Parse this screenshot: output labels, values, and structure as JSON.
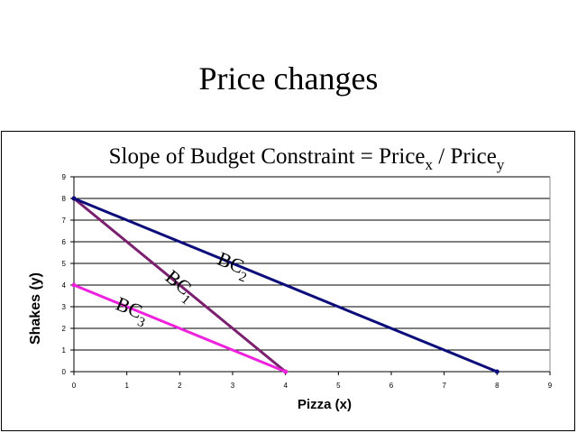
{
  "slide": {
    "title": "Price changes"
  },
  "chart_data": {
    "type": "line",
    "title": "Slope of Budget Constraint = Price",
    "title_sub1": "x",
    "title_mid": " / Price",
    "title_sub2": "y",
    "xlabel": "Pizza (x)",
    "ylabel": "Shakes (y)",
    "xlim": [
      0,
      9
    ],
    "ylim": [
      0,
      9
    ],
    "xticks": [
      0,
      1,
      2,
      3,
      4,
      5,
      6,
      7,
      8,
      9
    ],
    "yticks": [
      0,
      1,
      2,
      3,
      4,
      5,
      6,
      7,
      8,
      9
    ],
    "grid": true,
    "series": [
      {
        "name": "BC",
        "sub": "1",
        "color": "#7b1f6f",
        "points": [
          [
            0,
            8
          ],
          [
            4,
            0
          ]
        ]
      },
      {
        "name": "BC",
        "sub": "2",
        "color": "#0c0c7a",
        "points": [
          [
            0,
            8
          ],
          [
            8,
            0
          ]
        ]
      },
      {
        "name": "BC",
        "sub": "3",
        "color": "#ee22dd",
        "points": [
          [
            0,
            4
          ],
          [
            4,
            0
          ]
        ]
      }
    ]
  }
}
